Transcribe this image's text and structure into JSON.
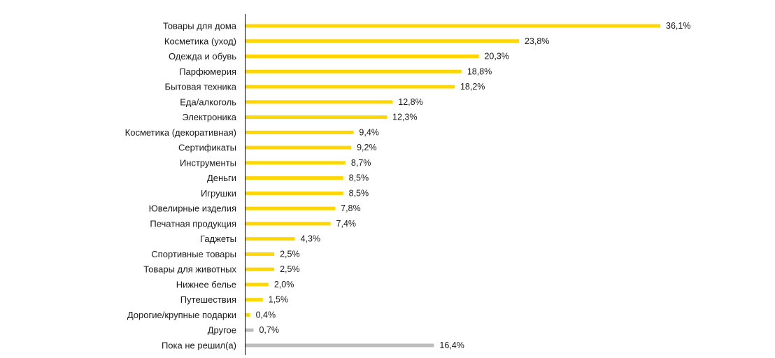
{
  "chart_data": {
    "type": "bar",
    "orientation": "horizontal",
    "title": "",
    "xlabel": "",
    "ylabel": "",
    "unit": "%",
    "xlim": [
      0,
      36.1
    ],
    "grid": false,
    "legend": "none",
    "categories": [
      "Товары для дома",
      "Косметика (уход)",
      "Одежда и обувь",
      "Парфюмерия",
      "Бытовая техника",
      "Еда/алкоголь",
      "Электроника",
      "Косметика (декоративная)",
      "Сертификаты",
      "Инструменты",
      "Деньги",
      "Игрушки",
      "Ювелирные изделия",
      "Печатная продукция",
      "Гаджеты",
      "Спортивные товары",
      "Товары для животных",
      "Нижнее белье",
      "Путешествия",
      "Дорогие/крупные подарки",
      "Другое",
      "Пока не решил(а)"
    ],
    "values": [
      36.1,
      23.8,
      20.3,
      18.8,
      18.2,
      12.8,
      12.3,
      9.4,
      9.2,
      8.7,
      8.5,
      8.5,
      7.8,
      7.4,
      4.3,
      2.5,
      2.5,
      2.0,
      1.5,
      0.4,
      0.7,
      16.4
    ],
    "value_labels": [
      "36,1%",
      "23,8%",
      "20,3%",
      "18,8%",
      "18,2%",
      "12,8%",
      "12,3%",
      "9,4%",
      "9,2%",
      "8,7%",
      "8,5%",
      "8,5%",
      "7,8%",
      "7,4%",
      "4,3%",
      "2,5%",
      "2,5%",
      "2,0%",
      "1,5%",
      "0,4%",
      "0,7%",
      "16,4%"
    ],
    "bar_colors": [
      "#FFD600",
      "#FFD600",
      "#FFD600",
      "#FFD600",
      "#FFD600",
      "#FFD600",
      "#FFD600",
      "#FFD600",
      "#FFD600",
      "#FFD600",
      "#FFD600",
      "#FFD600",
      "#FFD600",
      "#FFD600",
      "#FFD600",
      "#FFD600",
      "#FFD600",
      "#FFD600",
      "#FFD600",
      "#FFD600",
      "#BDBDBD",
      "#BDBDBD"
    ],
    "axis_color": "#000000"
  }
}
